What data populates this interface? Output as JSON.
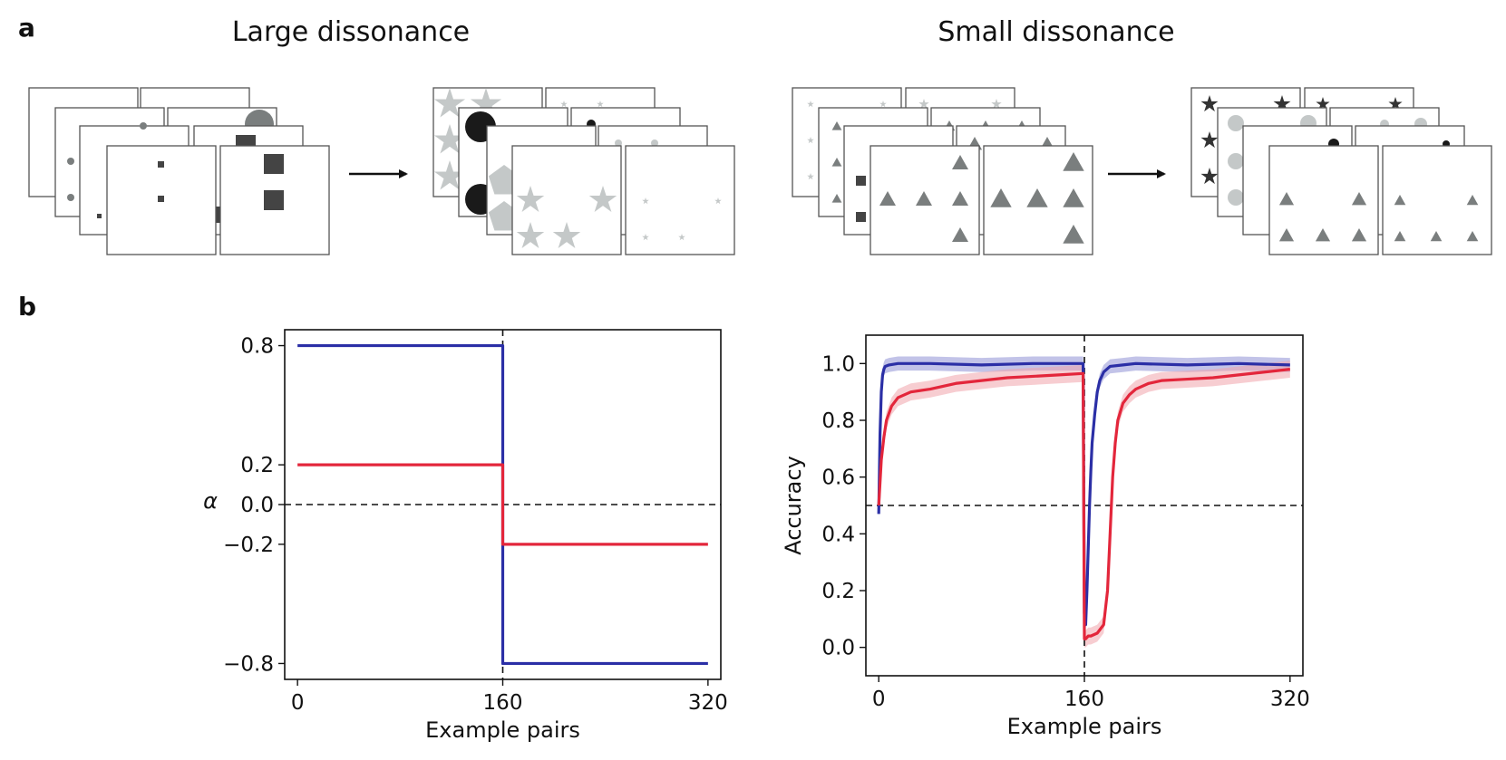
{
  "panels": {
    "a": {
      "letter": "a",
      "left_title": "Large dissonance",
      "right_title": "Small dissonance"
    },
    "b": {
      "letter": "b"
    }
  },
  "colors": {
    "blue": "#2b2fa6",
    "red": "#e3263b",
    "red_band": "#f0a4ac",
    "blue_band": "#8f91d6",
    "dark_gray": "#444444",
    "mid_gray": "#7a7e7e",
    "light_gray": "#c4c8c8"
  },
  "chart_data": [
    {
      "type": "line",
      "title": "",
      "xlabel": "Example pairs",
      "ylabel": "α",
      "xlim": [
        -10,
        330
      ],
      "ylim": [
        -0.88,
        0.88
      ],
      "xticks": [
        0,
        160,
        320
      ],
      "xtick_labels": [
        "0",
        "160",
        "320"
      ],
      "yticks": [
        0.8,
        0.2,
        0.0,
        -0.2,
        -0.8
      ],
      "ytick_labels": [
        "0.8",
        "0.2",
        "0.0",
        "−0.2",
        "−0.8"
      ],
      "reference_lines": {
        "horizontal": 0.0,
        "vertical": 160
      },
      "series": [
        {
          "name": "large dissonance",
          "color": "#2b2fa6",
          "x": [
            0,
            160,
            160,
            320
          ],
          "values": [
            0.8,
            0.8,
            -0.8,
            -0.8
          ]
        },
        {
          "name": "small dissonance",
          "color": "#e3263b",
          "x": [
            0,
            160,
            160,
            320
          ],
          "values": [
            0.2,
            0.2,
            -0.2,
            -0.2
          ]
        }
      ]
    },
    {
      "type": "line",
      "title": "",
      "xlabel": "Example pairs",
      "ylabel": "Accuracy",
      "xlim": [
        -10,
        330
      ],
      "ylim": [
        -0.1,
        1.1
      ],
      "xticks": [
        0,
        160,
        320
      ],
      "xtick_labels": [
        "0",
        "160",
        "320"
      ],
      "yticks": [
        0.0,
        0.2,
        0.4,
        0.6,
        0.8,
        1.0
      ],
      "ytick_labels": [
        "0.0",
        "0.2",
        "0.4",
        "0.6",
        "0.8",
        "1.0"
      ],
      "reference_lines": {
        "horizontal": 0.5,
        "vertical": 160
      },
      "series": [
        {
          "name": "large dissonance",
          "color": "#2b2fa6",
          "band": 0.025,
          "x": [
            0,
            1,
            2,
            3,
            4,
            5,
            8,
            15,
            40,
            80,
            120,
            159,
            160,
            161,
            162,
            163,
            164,
            165,
            166,
            168,
            170,
            172,
            175,
            180,
            190,
            200,
            240,
            280,
            320
          ],
          "values": [
            0.47,
            0.75,
            0.9,
            0.96,
            0.98,
            0.99,
            0.995,
            1.0,
            1.0,
            0.995,
            1.0,
            1.0,
            0.12,
            0.08,
            0.2,
            0.35,
            0.5,
            0.62,
            0.72,
            0.82,
            0.9,
            0.94,
            0.97,
            0.99,
            0.995,
            1.0,
            0.995,
            1.0,
            0.995
          ]
        },
        {
          "name": "small dissonance",
          "color": "#e3263b",
          "band": 0.03,
          "x": [
            0,
            1,
            2,
            4,
            6,
            10,
            15,
            25,
            40,
            60,
            80,
            100,
            120,
            140,
            159,
            160,
            161,
            163,
            165,
            170,
            175,
            178,
            180,
            182,
            184,
            186,
            190,
            195,
            200,
            210,
            220,
            240,
            260,
            280,
            300,
            320
          ],
          "values": [
            0.5,
            0.58,
            0.66,
            0.74,
            0.8,
            0.85,
            0.88,
            0.9,
            0.91,
            0.93,
            0.94,
            0.95,
            0.955,
            0.96,
            0.965,
            0.03,
            0.03,
            0.04,
            0.04,
            0.05,
            0.08,
            0.2,
            0.4,
            0.6,
            0.72,
            0.8,
            0.86,
            0.89,
            0.91,
            0.93,
            0.94,
            0.945,
            0.95,
            0.96,
            0.97,
            0.98
          ]
        }
      ]
    }
  ]
}
